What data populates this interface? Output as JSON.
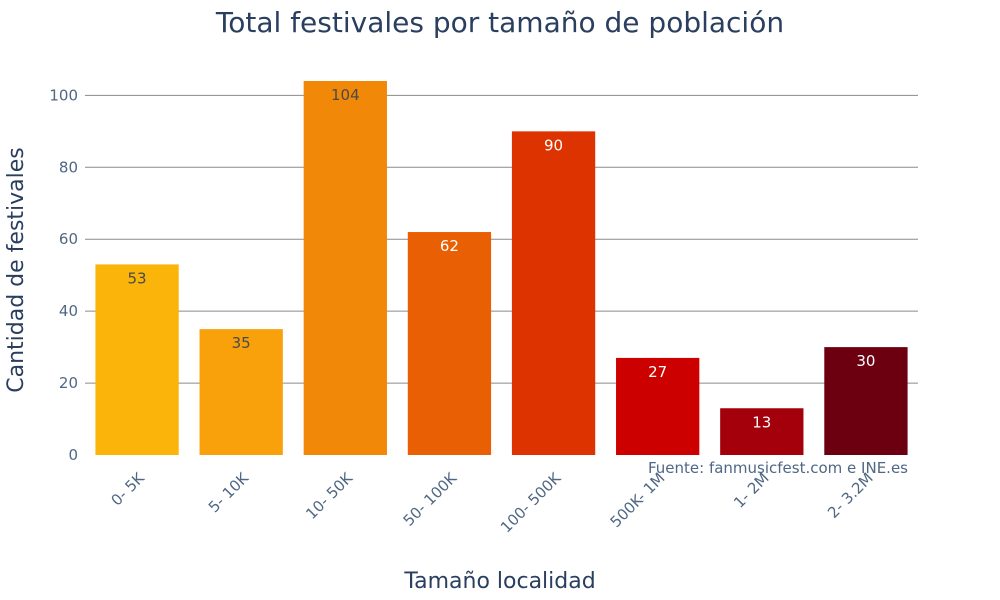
{
  "chart_data": {
    "type": "bar",
    "title": "Total festivales por tamaño de población",
    "xlabel": "Tamaño localidad",
    "ylabel": "Cantidad de festivales",
    "categories": [
      "0- 5K",
      "5- 10K",
      "10- 50K",
      "50- 100K",
      "100- 500K",
      "500K- 1M",
      "1- 2M",
      "2- 3.2M"
    ],
    "values": [
      53,
      35,
      104,
      62,
      90,
      27,
      13,
      30
    ],
    "colors": [
      "#fbb40a",
      "#f9a10a",
      "#f18808",
      "#e95f04",
      "#dd3300",
      "#cd0000",
      "#a3000c",
      "#6c0011"
    ],
    "label_colors": [
      "#4a4a4a",
      "#4a4a4a",
      "#4a4a4a",
      "#ffffff",
      "#ffffff",
      "#ffffff",
      "#ffffff",
      "#ffffff"
    ],
    "ylim": [
      0,
      104
    ],
    "yticks": [
      0,
      20,
      40,
      60,
      80,
      100
    ],
    "grid": true,
    "source_note": "Fuente: fanmusicfest.com e INE.es"
  }
}
